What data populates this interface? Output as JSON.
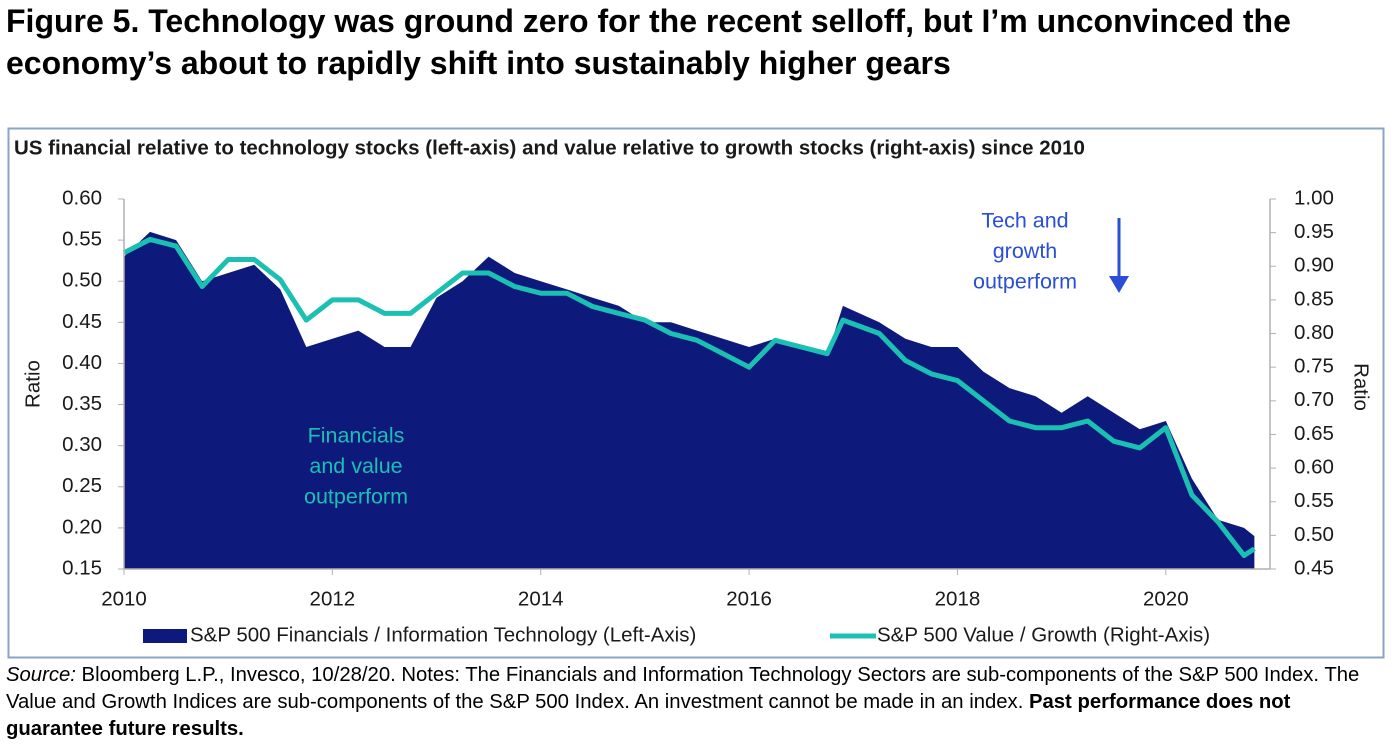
{
  "chart_data": {
    "type": "area",
    "title": "Figure 5. Technology was ground zero for the recent selloff, but I’m unconvinced the economy’s about to rapidly shift into sustainably higher gears",
    "subtitle": "US financial relative to technology stocks (left-axis) and value relative to growth stocks (right-axis) since 2010",
    "y_label": "Ratio",
    "y2_label": "Ratio",
    "x": [
      2010.0,
      2010.25,
      2010.5,
      2010.75,
      2011.0,
      2011.25,
      2011.5,
      2011.75,
      2012.0,
      2012.25,
      2012.5,
      2012.75,
      2013.0,
      2013.25,
      2013.5,
      2013.75,
      2014.0,
      2014.25,
      2014.5,
      2014.75,
      2015.0,
      2015.25,
      2015.5,
      2015.75,
      2016.0,
      2016.25,
      2016.5,
      2016.75,
      2016.9,
      2017.25,
      2017.5,
      2017.75,
      2018.0,
      2018.25,
      2018.5,
      2018.75,
      2019.0,
      2019.25,
      2019.5,
      2019.75,
      2020.0,
      2020.25,
      2020.5,
      2020.75,
      2020.85
    ],
    "series": [
      {
        "name": "S&P 500 Financials / Information Technology (Left-Axis)",
        "type": "area",
        "color": "#0d1a7c",
        "values": [
          0.53,
          0.56,
          0.55,
          0.5,
          0.51,
          0.52,
          0.49,
          0.42,
          0.43,
          0.44,
          0.42,
          0.42,
          0.48,
          0.5,
          0.53,
          0.51,
          0.5,
          0.49,
          0.48,
          0.47,
          0.45,
          0.45,
          0.44,
          0.43,
          0.42,
          0.43,
          0.42,
          0.41,
          0.47,
          0.45,
          0.43,
          0.42,
          0.42,
          0.39,
          0.37,
          0.36,
          0.34,
          0.36,
          0.34,
          0.32,
          0.33,
          0.26,
          0.21,
          0.2,
          0.19
        ]
      },
      {
        "name": "S&P 500 Value / Growth (Right-Axis)",
        "type": "line",
        "axis": "y2",
        "color": "#1cc0b2",
        "values": [
          0.92,
          0.94,
          0.93,
          0.87,
          0.91,
          0.91,
          0.88,
          0.82,
          0.85,
          0.85,
          0.83,
          0.83,
          0.86,
          0.89,
          0.89,
          0.87,
          0.86,
          0.86,
          0.84,
          0.83,
          0.82,
          0.8,
          0.79,
          0.77,
          0.75,
          0.79,
          0.78,
          0.77,
          0.82,
          0.8,
          0.76,
          0.74,
          0.73,
          0.7,
          0.67,
          0.66,
          0.66,
          0.67,
          0.64,
          0.63,
          0.66,
          0.56,
          0.52,
          0.47,
          0.48
        ]
      }
    ],
    "xlim": [
      2010,
      2021
    ],
    "xticks": [
      2010,
      2012,
      2014,
      2016,
      2018,
      2020
    ],
    "ylim": [
      0.15,
      0.6
    ],
    "yticks": [
      {
        "value": 0.15,
        "label": "0.15"
      },
      {
        "value": 0.2,
        "label": "0.20"
      },
      {
        "value": 0.25,
        "label": "0.25"
      },
      {
        "value": 0.3,
        "label": "0.30"
      },
      {
        "value": 0.35,
        "label": "0.35"
      },
      {
        "value": 0.4,
        "label": "0.40"
      },
      {
        "value": 0.45,
        "label": "0.45"
      },
      {
        "value": 0.5,
        "label": "0.50"
      },
      {
        "value": 0.55,
        "label": "0.55"
      },
      {
        "value": 0.6,
        "label": "0.60"
      }
    ],
    "y2lim": [
      0.45,
      1.0
    ],
    "y2ticks": [
      {
        "value": 0.45,
        "label": "0.45"
      },
      {
        "value": 0.5,
        "label": "0.50"
      },
      {
        "value": 0.55,
        "label": "0.55"
      },
      {
        "value": 0.6,
        "label": "0.60"
      },
      {
        "value": 0.65,
        "label": "0.65"
      },
      {
        "value": 0.7,
        "label": "0.70"
      },
      {
        "value": 0.75,
        "label": "0.75"
      },
      {
        "value": 0.8,
        "label": "0.80"
      },
      {
        "value": 0.85,
        "label": "0.85"
      },
      {
        "value": 0.9,
        "label": "0.90"
      },
      {
        "value": 0.95,
        "label": "0.95"
      },
      {
        "value": 1.0,
        "label": "1.00"
      }
    ],
    "grid": false,
    "legend": "bottom",
    "annotations": [
      {
        "lines": [
          "Tech and",
          "growth",
          "outperform"
        ],
        "color": "#2a4fd6"
      },
      {
        "lines": [
          "Financials",
          "and value",
          "outperform"
        ],
        "color": "#1cc0b2"
      }
    ],
    "notes": {
      "source_label": "Source:",
      "text": " Bloomberg L.P., Invesco, 10/28/20. Notes: The Financials and Information Technology Sectors are sub-components of the S&P 500 Index. The Value and Growth Indices are sub-components of the S&P 500 Index. An investment cannot be made in an index. ",
      "emphasis": "Past performance does not guarantee future results."
    }
  }
}
